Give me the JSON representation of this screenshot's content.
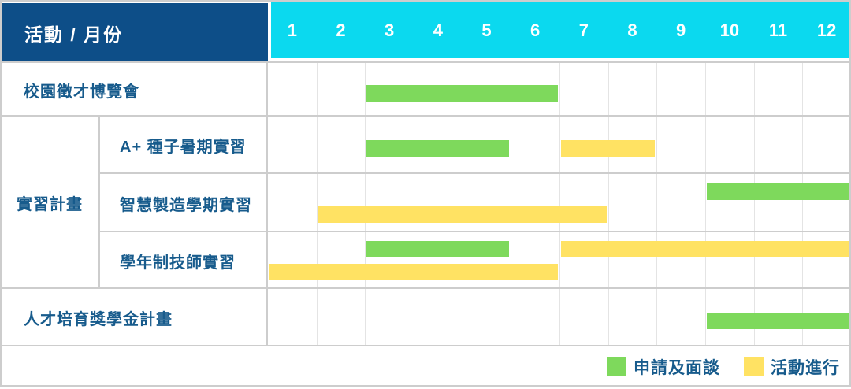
{
  "header": {
    "corner_label": "活動 / 月份",
    "months": [
      "1",
      "2",
      "3",
      "4",
      "5",
      "6",
      "7",
      "8",
      "9",
      "10",
      "11",
      "12"
    ]
  },
  "colors": {
    "header_navy": "#0D4E88",
    "header_cyan": "#0BD9EF",
    "bar_green": "#7ED95C",
    "bar_yellow": "#FFE263",
    "label_text": "#175B8C",
    "grid_line": "#E4E4E4",
    "border": "#CDCDCD"
  },
  "legend": {
    "items": [
      {
        "color": "green",
        "label": "申請及面談"
      },
      {
        "color": "yellow",
        "label": "活動進行"
      }
    ]
  },
  "chart_data": {
    "type": "gantt",
    "x_unit": "month",
    "x_ticks": [
      "1",
      "2",
      "3",
      "4",
      "5",
      "6",
      "7",
      "8",
      "9",
      "10",
      "11",
      "12"
    ],
    "x_range": [
      1,
      12
    ],
    "legend_map": {
      "green": "申請及面談",
      "yellow": "活動進行"
    },
    "rows": [
      {
        "group": "",
        "label": "校園徵才博覽會",
        "bars": [
          {
            "type": "green",
            "start_month": 3,
            "end_month": 6,
            "track": 0
          }
        ]
      },
      {
        "group": "實習計畫",
        "label": "A+ 種子暑期實習",
        "bars": [
          {
            "type": "green",
            "start_month": 3,
            "end_month": 5,
            "track": 0
          },
          {
            "type": "yellow",
            "start_month": 7,
            "end_month": 8,
            "track": 0
          }
        ]
      },
      {
        "group": "實習計畫",
        "label": "智慧製造學期實習",
        "bars": [
          {
            "type": "green",
            "start_month": 10,
            "end_month": 12,
            "track": 0
          },
          {
            "type": "yellow",
            "start_month": 2,
            "end_month": 7,
            "track": 1
          }
        ]
      },
      {
        "group": "實習計畫",
        "label": "學年制技師實習",
        "bars": [
          {
            "type": "green",
            "start_month": 3,
            "end_month": 5,
            "track": 0
          },
          {
            "type": "yellow",
            "start_month": 7,
            "end_month": 12,
            "track": 0
          },
          {
            "type": "yellow",
            "start_month": 1,
            "end_month": 6,
            "track": 1
          }
        ]
      },
      {
        "group": "",
        "label": "人才培育獎學金計畫",
        "bars": [
          {
            "type": "green",
            "start_month": 10,
            "end_month": 12,
            "track": 0
          }
        ]
      }
    ]
  }
}
